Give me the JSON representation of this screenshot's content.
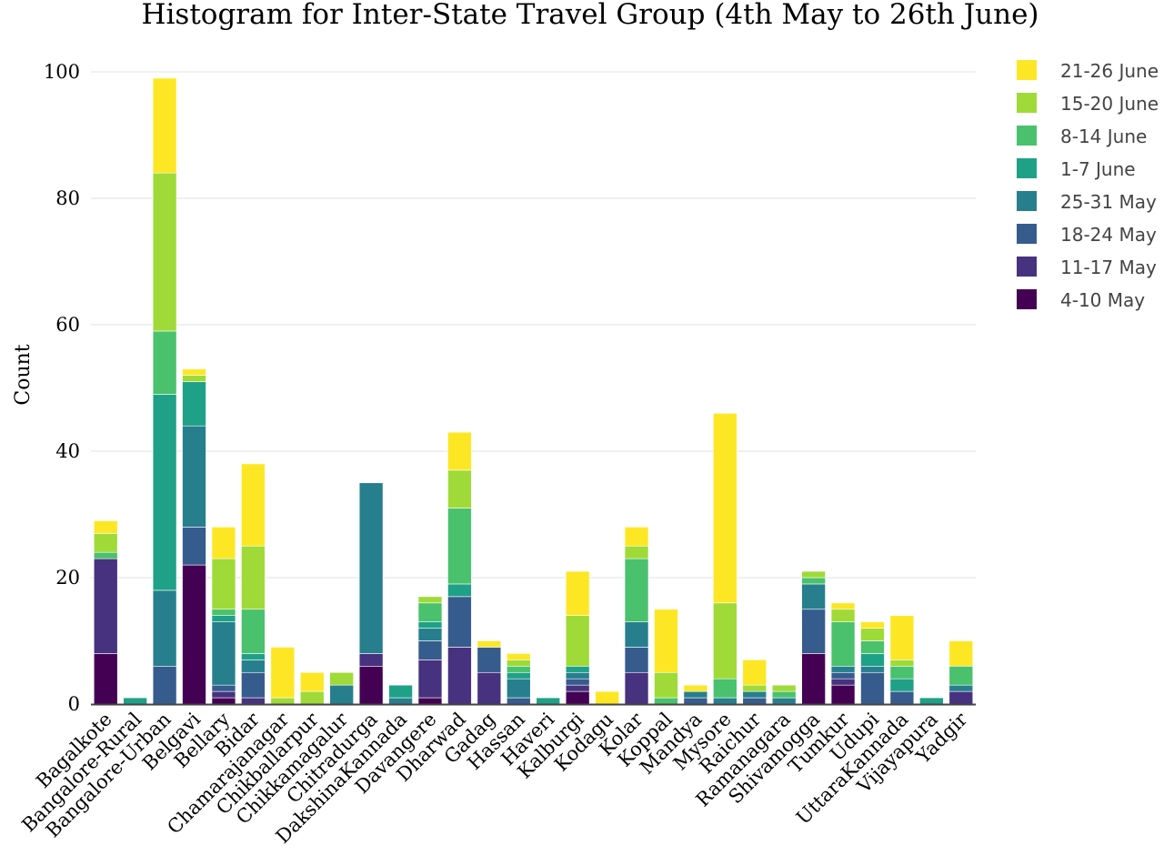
{
  "chart_data": {
    "type": "bar",
    "stacked": true,
    "title": "Histogram for Inter-State Travel Group (4th May to 26th June)",
    "xlabel": "",
    "ylabel": "Count",
    "ylim": [
      0,
      102
    ],
    "yticks": [
      0,
      20,
      40,
      60,
      80,
      100
    ],
    "grid": true,
    "legend_position": "top-right",
    "categories": [
      "Bagalkote",
      "Bangalore-Rural",
      "Bangalore-Urban",
      "Belgavi",
      "Bellary",
      "Bidar",
      "Chamarajanagar",
      "Chikballarpur",
      "Chikkamagalur",
      "Chitradurga",
      "DakshinaKannada",
      "Davangere",
      "Dharwad",
      "Gadag",
      "Hassan",
      "Haveri",
      "Kalburgi",
      "Kodagu",
      "Kolar",
      "Koppal",
      "Mandya",
      "Mysore",
      "Raichur",
      "Ramanagara",
      "Shivamogga",
      "Tumkur",
      "Udupi",
      "UttaraKannada",
      "Vijayapura",
      "Yadgir"
    ],
    "series": [
      {
        "name": "4-10 May",
        "color": "#440154",
        "values": [
          8,
          0,
          0,
          22,
          1,
          0,
          0,
          0,
          0,
          6,
          0,
          1,
          0,
          0,
          0,
          0,
          2,
          0,
          0,
          0,
          0,
          0,
          0,
          0,
          8,
          3,
          0,
          0,
          0,
          0
        ]
      },
      {
        "name": "11-17 May",
        "color": "#46327e",
        "values": [
          15,
          0,
          0,
          0,
          1,
          1,
          0,
          0,
          0,
          2,
          0,
          6,
          9,
          5,
          0,
          0,
          1,
          0,
          5,
          0,
          0,
          0,
          0,
          0,
          0,
          1,
          0,
          0,
          0,
          2
        ]
      },
      {
        "name": "18-24 May",
        "color": "#365c8d",
        "values": [
          0,
          0,
          6,
          6,
          1,
          4,
          0,
          0,
          0,
          0,
          0,
          3,
          8,
          4,
          1,
          0,
          1,
          0,
          4,
          0,
          1,
          0,
          1,
          0,
          7,
          1,
          5,
          2,
          0,
          0
        ]
      },
      {
        "name": "25-31 May",
        "color": "#277f8e",
        "values": [
          0,
          0,
          12,
          16,
          10,
          2,
          0,
          0,
          3,
          27,
          1,
          2,
          0,
          0,
          3,
          0,
          1,
          0,
          4,
          0,
          1,
          1,
          1,
          1,
          4,
          1,
          1,
          0,
          0,
          1
        ]
      },
      {
        "name": "1-7 June",
        "color": "#1fa187",
        "values": [
          0,
          1,
          31,
          7,
          1,
          1,
          0,
          0,
          0,
          0,
          2,
          1,
          2,
          0,
          1,
          1,
          1,
          0,
          0,
          0,
          0,
          0,
          0,
          0,
          0,
          0,
          2,
          2,
          1,
          0
        ]
      },
      {
        "name": "8-14 June",
        "color": "#4ac16d",
        "values": [
          1,
          0,
          10,
          0,
          1,
          7,
          0,
          0,
          0,
          0,
          0,
          3,
          12,
          0,
          1,
          0,
          0,
          0,
          10,
          1,
          0,
          3,
          0,
          1,
          1,
          7,
          2,
          2,
          0,
          3
        ]
      },
      {
        "name": "15-20 June",
        "color": "#a0da39",
        "values": [
          3,
          0,
          25,
          1,
          8,
          10,
          1,
          2,
          2,
          0,
          0,
          1,
          6,
          0,
          1,
          0,
          8,
          0,
          2,
          4,
          0,
          12,
          1,
          1,
          1,
          2,
          2,
          1,
          0,
          0
        ]
      },
      {
        "name": "21-26 June",
        "color": "#fde725",
        "values": [
          2,
          0,
          15,
          1,
          5,
          13,
          8,
          3,
          0,
          0,
          0,
          0,
          6,
          1,
          1,
          0,
          7,
          2,
          3,
          10,
          1,
          30,
          4,
          0,
          0,
          1,
          1,
          7,
          0,
          4
        ]
      }
    ]
  }
}
